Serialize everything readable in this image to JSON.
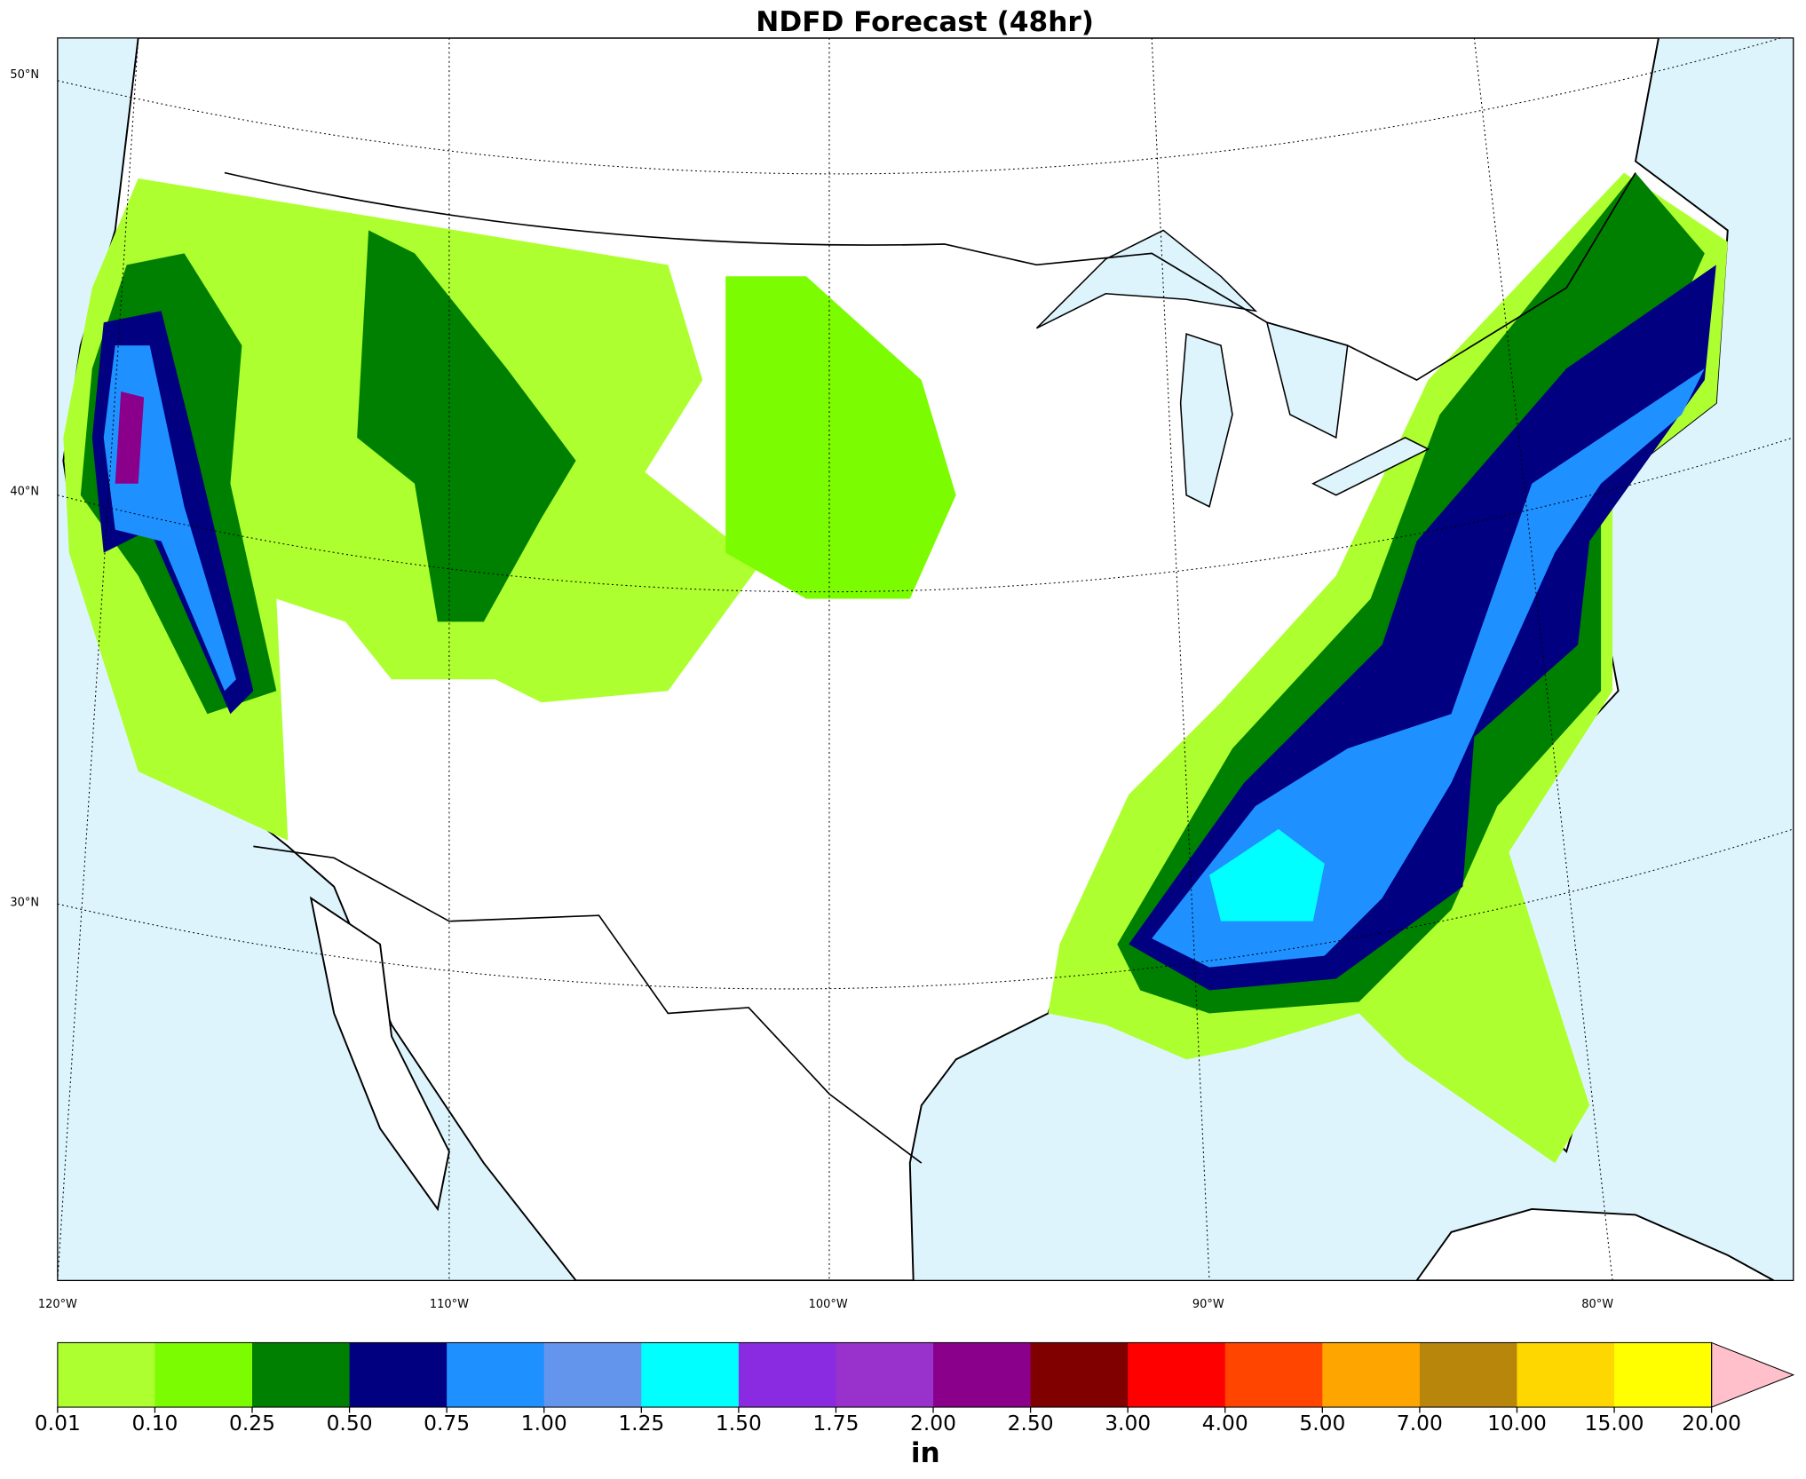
{
  "title": "NDFD Forecast (48hr)",
  "map": {
    "lat_labels": [
      "50°N",
      "40°N",
      "30°N"
    ],
    "lon_labels": [
      "120°W",
      "110°W",
      "100°W",
      "90°W",
      "80°W"
    ]
  },
  "colorbar": {
    "boundaries": [
      {
        "value": 0.01,
        "label": "0.01"
      },
      {
        "value": 0.1,
        "label": "0.10"
      },
      {
        "value": 0.25,
        "label": "0.25"
      },
      {
        "value": 0.5,
        "label": "0.50"
      },
      {
        "value": 0.75,
        "label": "0.75"
      },
      {
        "value": 1,
        "label": "1.00"
      },
      {
        "value": 1.25,
        "label": "1.25"
      },
      {
        "value": 1.5,
        "label": "1.50"
      },
      {
        "value": 1.75,
        "label": "1.75"
      },
      {
        "value": 2,
        "label": "2.00"
      },
      {
        "value": 2.5,
        "label": "2.50"
      },
      {
        "value": 3,
        "label": "3.00"
      },
      {
        "value": 4,
        "label": "4.00"
      },
      {
        "value": 5,
        "label": "5.00"
      },
      {
        "value": 7,
        "label": "7.00"
      },
      {
        "value": 10,
        "label": "10.00"
      },
      {
        "value": 15,
        "label": "15.00"
      },
      {
        "value": 20,
        "label": "20.00"
      }
    ],
    "colors": [
      "#adff2f",
      "#7cfc00",
      "#008000",
      "#000080",
      "#1e90ff",
      "#6495ed",
      "#00ffff",
      "#8a2be2",
      "#9932cc",
      "#8b008b",
      "#800000",
      "#ff0000",
      "#ff4500",
      "#ffa500",
      "#b8860b",
      "#ffd700",
      "#ffff00"
    ],
    "over_color": "#ffc0cb",
    "unit": "in"
  }
}
